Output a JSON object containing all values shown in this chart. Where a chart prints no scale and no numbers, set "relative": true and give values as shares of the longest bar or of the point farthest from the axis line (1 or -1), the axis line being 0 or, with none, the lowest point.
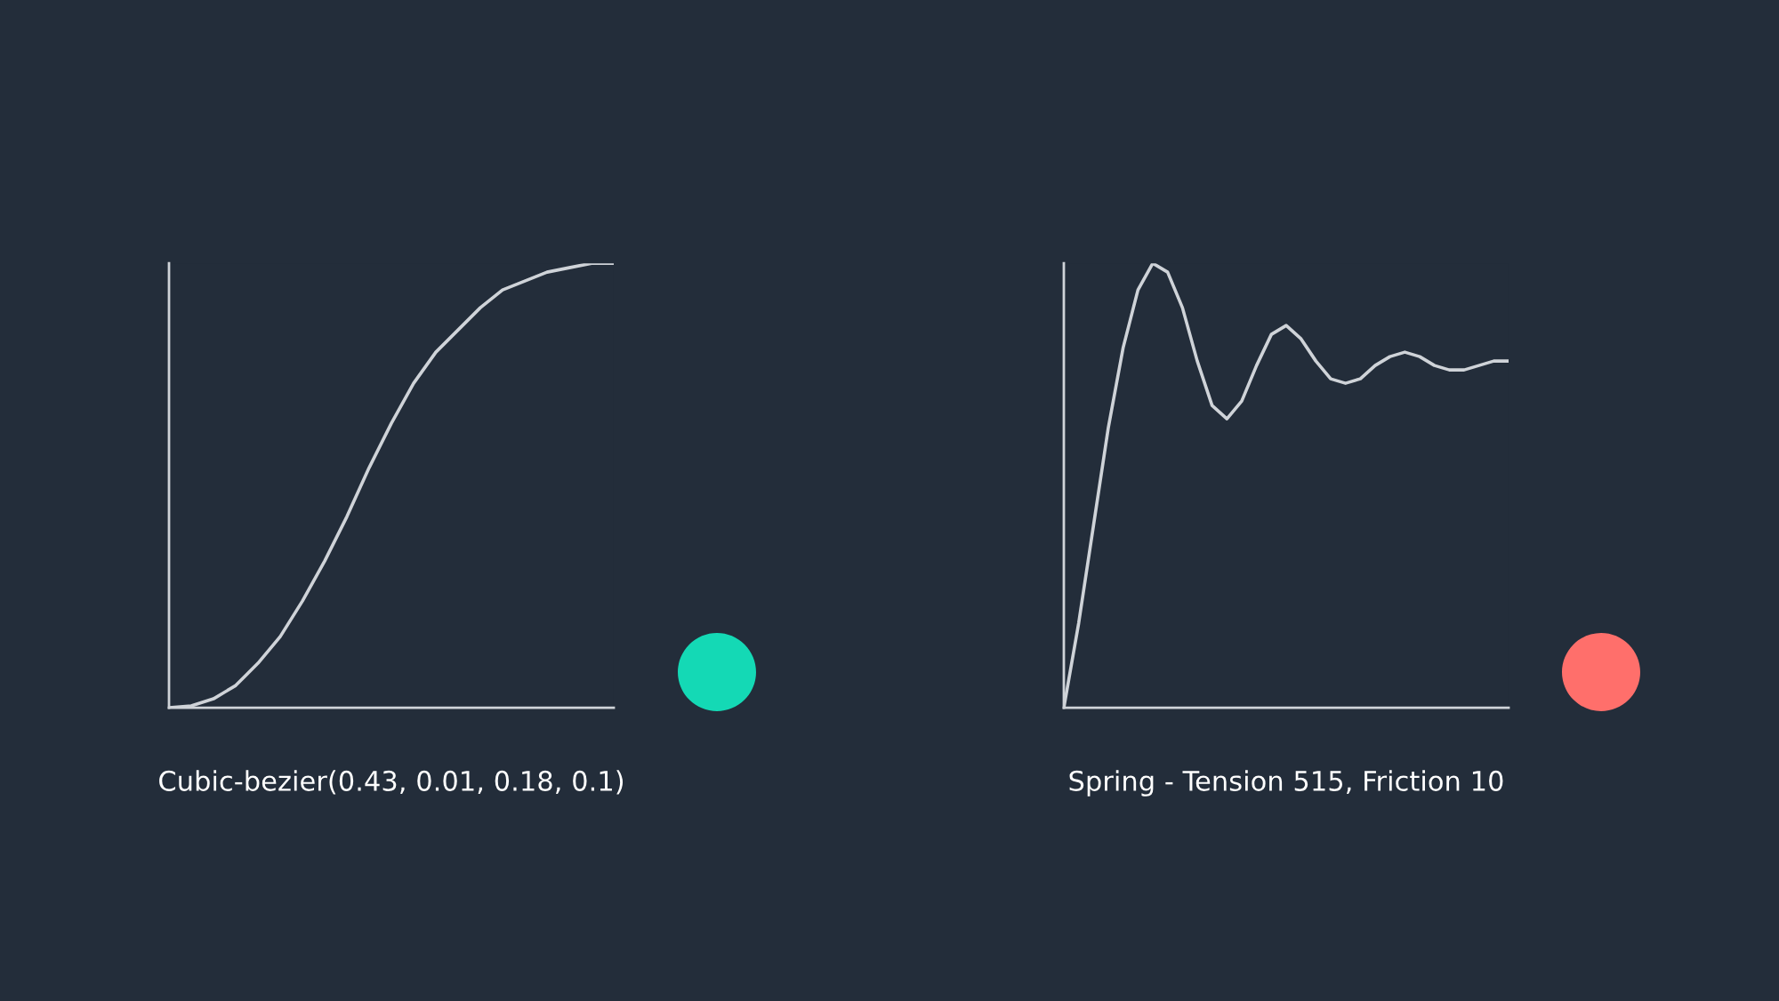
{
  "chart_data": [
    {
      "type": "line",
      "title": "Cubic-bezier(0.43, 0.01, 0.18, 0.1)",
      "relative": true,
      "categories": [
        null,
        null,
        null,
        null,
        null,
        null,
        null,
        null,
        null,
        null,
        null,
        null,
        null,
        null,
        null,
        null,
        null,
        null,
        null,
        null,
        null
      ],
      "series": [
        {
          "color": "#cfd3d8",
          "values": [
            0,
            0.004,
            0.02,
            0.05,
            0.1,
            0.16,
            0.24,
            0.33,
            0.43,
            0.54,
            0.64,
            0.73,
            0.8,
            0.85,
            0.9,
            0.94,
            0.96,
            0.98,
            0.99,
            1.0,
            1.0
          ]
        }
      ]
    },
    {
      "type": "line",
      "title": "Spring - Tension 515, Friction 10",
      "relative": true,
      "categories": [
        null,
        null,
        null,
        null,
        null,
        null,
        null,
        null,
        null,
        null,
        null,
        null,
        null,
        null,
        null,
        null,
        null,
        null,
        null,
        null,
        null,
        null,
        null,
        null,
        null,
        null,
        null,
        null,
        null,
        null,
        null
      ],
      "series": [
        {
          "color": "#cfd3d8",
          "values": [
            0,
            0.19,
            0.41,
            0.63,
            0.81,
            0.94,
            1.0,
            0.98,
            0.9,
            0.78,
            0.68,
            0.65,
            0.69,
            0.77,
            0.84,
            0.86,
            0.83,
            0.78,
            0.74,
            0.73,
            0.74,
            0.77,
            0.79,
            0.8,
            0.79,
            0.77,
            0.76,
            0.76,
            0.77,
            0.78,
            0.78
          ]
        }
      ]
    }
  ]
}
